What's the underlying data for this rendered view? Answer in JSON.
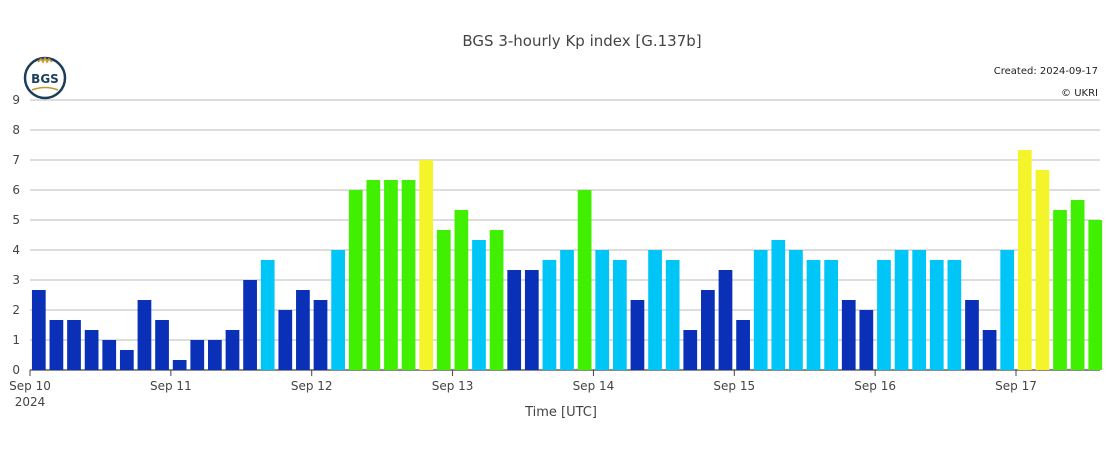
{
  "chart_data": {
    "type": "bar",
    "title": "BGS 3-hourly Kp index [G.137b]",
    "xlabel": "Time [UTC]",
    "ylabel": "",
    "ylim": [
      0,
      9
    ],
    "yticks": [
      0,
      1,
      2,
      3,
      4,
      5,
      6,
      7,
      8,
      9
    ],
    "x_ticks": [
      "Sep 10",
      "Sep 11",
      "Sep 12",
      "Sep 13",
      "Sep 14",
      "Sep 15",
      "Sep 16",
      "Sep 17"
    ],
    "x_year": "2024",
    "created": "Created: 2024-09-17",
    "credit": "© UKRI",
    "grid": true,
    "start_date": "2024-09-10",
    "values": [
      2.667,
      1.667,
      1.667,
      1.333,
      1,
      0.667,
      2.333,
      1.667,
      0.333,
      1,
      1,
      1.333,
      3,
      3.667,
      2,
      2.667,
      2.333,
      4,
      6,
      6.333,
      6.333,
      6.333,
      7,
      4.667,
      5.333,
      4.333,
      4.667,
      3.333,
      3.333,
      3.667,
      4,
      6,
      4,
      3.667,
      2.333,
      4,
      3.667,
      1.333,
      2.667,
      3.333,
      1.667,
      4,
      4.333,
      4,
      3.667,
      3.667,
      2.333,
      2,
      3.667,
      4,
      4,
      3.667,
      3.667,
      2.333,
      1.333,
      4,
      7.333,
      6.667,
      5.333,
      5.667,
      5
    ],
    "colors": {
      "quiet": "#0a30b8",
      "unsettled": "#00c6f7",
      "active": "#40f000",
      "storm": "#f4f42a"
    }
  },
  "logo": {
    "text": "BGS"
  }
}
